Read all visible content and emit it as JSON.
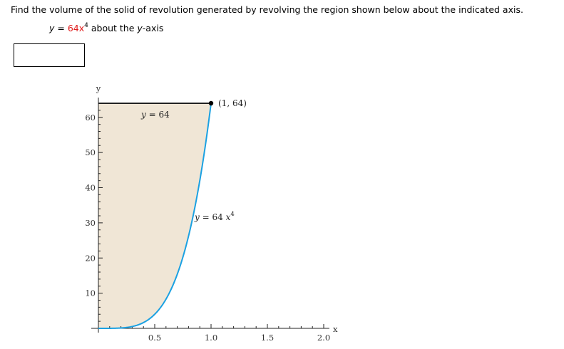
{
  "question": {
    "prompt": "Find the volume of the solid of revolution generated by revolving the region shown below about the indicated axis.",
    "equation_lhs": "y",
    "equation_eq": " = ",
    "equation_coef": "64x",
    "equation_exp": "4",
    "equation_about": " about the ",
    "equation_axis_var": "y",
    "equation_axis_rest": "-axis"
  },
  "answer_input": {
    "value": "",
    "placeholder": ""
  },
  "colors": {
    "highlight": "#e01b1b",
    "curve": "#1ba1e2",
    "region_fill": "#f0e6d6",
    "boundary": "#222222"
  },
  "chart_data": {
    "type": "area",
    "title": "",
    "xlabel": "x",
    "ylabel": "y",
    "xlim": [
      0,
      2.0
    ],
    "ylim": [
      0,
      64
    ],
    "x_ticks": [
      "0.5",
      "1.0",
      "1.5",
      "2.0"
    ],
    "y_ticks": [
      "10",
      "20",
      "30",
      "40",
      "50",
      "60"
    ],
    "grid": false,
    "series": [
      {
        "name": "y = 64 x^4",
        "x": [
          0,
          0.1,
          0.2,
          0.3,
          0.4,
          0.5,
          0.6,
          0.7,
          0.8,
          0.9,
          1.0
        ],
        "values": [
          0,
          0.0064,
          0.1024,
          0.5184,
          1.6384,
          4,
          8.2944,
          15.3664,
          26.2144,
          41.9904,
          64
        ]
      },
      {
        "name": "y = 64",
        "x": [
          0,
          1.0
        ],
        "values": [
          64,
          64
        ]
      }
    ],
    "annotations": [
      {
        "text": "y = 64",
        "x": 0.5,
        "y": 61
      },
      {
        "text": "y = 64 x⁴",
        "x": 1.02,
        "y": 32
      },
      {
        "text": "(1, 64)",
        "x": 1.0,
        "y": 64
      }
    ],
    "shaded_region": "between y = 64x^4 and y = 64 for 0 ≤ x ≤ 1"
  },
  "labels": {
    "y_axis": "y",
    "x_axis": "x",
    "line_label": "y = 64",
    "curve_label_base": "y = 64 x",
    "curve_label_exp": "4",
    "point_label": "(1, 64)"
  }
}
